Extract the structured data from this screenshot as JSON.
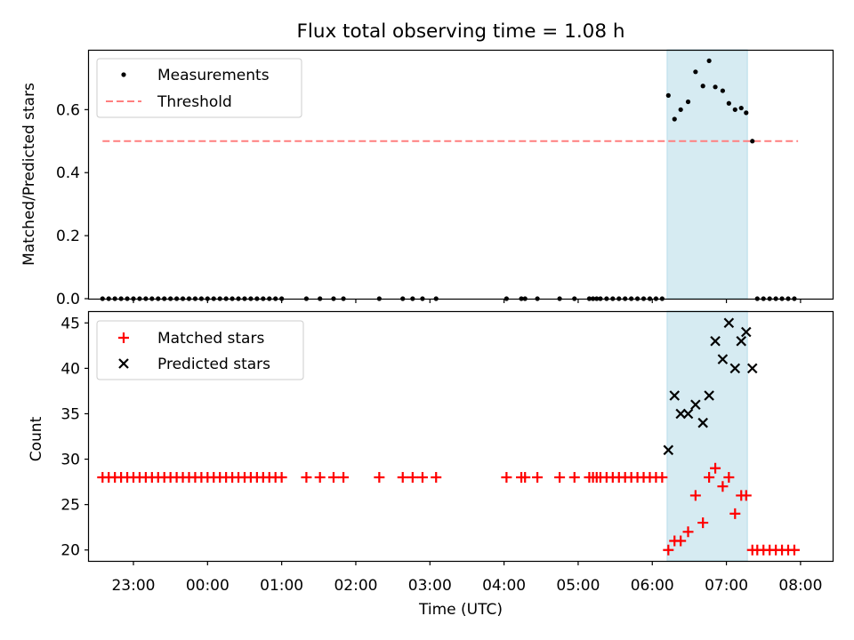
{
  "figure": {
    "title": "Flux total observing time = 1.08 h",
    "xlabel": "Time (UTC)",
    "xtick_labels": [
      "23:00",
      "00:00",
      "01:00",
      "02:00",
      "03:00",
      "04:00",
      "05:00",
      "06:00",
      "07:00",
      "08:00"
    ]
  },
  "chart_data": [
    {
      "type": "scatter",
      "ylabel": "Matched/Predicted stars",
      "xlim": [
        "22:24",
        "08:26"
      ],
      "ylim": [
        0,
        0.79
      ],
      "yticks": [
        0.0,
        0.2,
        0.4,
        0.6
      ],
      "ytick_labels": [
        "0.0",
        "0.2",
        "0.4",
        "0.6"
      ],
      "highlight_span": [
        "06:12",
        "07:17"
      ],
      "legend": {
        "placement": "upper left",
        "entries": [
          "Measurements",
          "Threshold"
        ]
      },
      "colors": {
        "measurements": "#000000",
        "threshold": "#ff7f7f",
        "span": "#add8e6"
      },
      "threshold": {
        "name": "Threshold",
        "x": [
          "22:35",
          "07:58"
        ],
        "y": 0.5
      },
      "series": [
        {
          "name": "Measurements",
          "points": [
            [
              "22:35",
              0
            ],
            [
              "22:40",
              0
            ],
            [
              "22:45",
              0
            ],
            [
              "22:50",
              0
            ],
            [
              "22:55",
              0
            ],
            [
              "23:00",
              0
            ],
            [
              "23:05",
              0
            ],
            [
              "23:10",
              0
            ],
            [
              "23:15",
              0
            ],
            [
              "23:20",
              0
            ],
            [
              "23:25",
              0
            ],
            [
              "23:30",
              0
            ],
            [
              "23:35",
              0
            ],
            [
              "23:40",
              0
            ],
            [
              "23:45",
              0
            ],
            [
              "23:50",
              0
            ],
            [
              "23:55",
              0
            ],
            [
              "00:00",
              0
            ],
            [
              "00:05",
              0
            ],
            [
              "00:10",
              0
            ],
            [
              "00:15",
              0
            ],
            [
              "00:20",
              0
            ],
            [
              "00:25",
              0
            ],
            [
              "00:30",
              0
            ],
            [
              "00:35",
              0
            ],
            [
              "00:40",
              0
            ],
            [
              "00:45",
              0
            ],
            [
              "00:50",
              0
            ],
            [
              "00:55",
              0
            ],
            [
              "01:00",
              0
            ],
            [
              "01:20",
              0
            ],
            [
              "01:31",
              0
            ],
            [
              "01:42",
              0
            ],
            [
              "01:50",
              0
            ],
            [
              "02:19",
              0
            ],
            [
              "02:38",
              0
            ],
            [
              "02:46",
              0
            ],
            [
              "02:54",
              0
            ],
            [
              "03:05",
              0
            ],
            [
              "04:02",
              0
            ],
            [
              "04:14",
              0
            ],
            [
              "04:17",
              0
            ],
            [
              "04:27",
              0
            ],
            [
              "04:45",
              0
            ],
            [
              "04:57",
              0
            ],
            [
              "05:09",
              0
            ],
            [
              "05:12",
              0
            ],
            [
              "05:15",
              0
            ],
            [
              "05:18",
              0
            ],
            [
              "05:23",
              0
            ],
            [
              "05:28",
              0
            ],
            [
              "05:33",
              0
            ],
            [
              "05:38",
              0
            ],
            [
              "05:43",
              0
            ],
            [
              "05:48",
              0
            ],
            [
              "05:53",
              0
            ],
            [
              "05:58",
              0
            ],
            [
              "06:03",
              0
            ],
            [
              "06:08",
              0
            ],
            [
              "06:13",
              0.645
            ],
            [
              "06:18",
              0.57
            ],
            [
              "06:23",
              0.6
            ],
            [
              "06:29",
              0.625
            ],
            [
              "06:35",
              0.72
            ],
            [
              "06:41",
              0.675
            ],
            [
              "06:46",
              0.755
            ],
            [
              "06:51",
              0.672
            ],
            [
              "06:57",
              0.66
            ],
            [
              "07:02",
              0.62
            ],
            [
              "07:07",
              0.6
            ],
            [
              "07:12",
              0.605
            ],
            [
              "07:16",
              0.59
            ],
            [
              "07:21",
              0.5
            ],
            [
              "07:25",
              0
            ],
            [
              "07:30",
              0
            ],
            [
              "07:35",
              0
            ],
            [
              "07:40",
              0
            ],
            [
              "07:45",
              0
            ],
            [
              "07:50",
              0
            ],
            [
              "07:55",
              0
            ]
          ]
        }
      ]
    },
    {
      "type": "scatter",
      "ylabel": "Count",
      "xlim": [
        "22:24",
        "08:26"
      ],
      "ylim": [
        18.8,
        46.3
      ],
      "yticks": [
        20,
        25,
        30,
        35,
        40,
        45
      ],
      "ytick_labels": [
        "20",
        "25",
        "30",
        "35",
        "40",
        "45"
      ],
      "highlight_span": [
        "06:12",
        "07:17"
      ],
      "legend": {
        "placement": "upper left",
        "entries": [
          "Matched stars",
          "Predicted stars"
        ]
      },
      "colors": {
        "matched": "#ff0000",
        "predicted": "#000000",
        "span": "#add8e6"
      },
      "series": [
        {
          "name": "Matched stars",
          "points": [
            [
              "22:35",
              28
            ],
            [
              "22:40",
              28
            ],
            [
              "22:45",
              28
            ],
            [
              "22:50",
              28
            ],
            [
              "22:55",
              28
            ],
            [
              "23:00",
              28
            ],
            [
              "23:05",
              28
            ],
            [
              "23:10",
              28
            ],
            [
              "23:15",
              28
            ],
            [
              "23:20",
              28
            ],
            [
              "23:25",
              28
            ],
            [
              "23:30",
              28
            ],
            [
              "23:35",
              28
            ],
            [
              "23:40",
              28
            ],
            [
              "23:45",
              28
            ],
            [
              "23:50",
              28
            ],
            [
              "23:55",
              28
            ],
            [
              "00:00",
              28
            ],
            [
              "00:05",
              28
            ],
            [
              "00:10",
              28
            ],
            [
              "00:15",
              28
            ],
            [
              "00:20",
              28
            ],
            [
              "00:25",
              28
            ],
            [
              "00:30",
              28
            ],
            [
              "00:35",
              28
            ],
            [
              "00:40",
              28
            ],
            [
              "00:45",
              28
            ],
            [
              "00:50",
              28
            ],
            [
              "00:55",
              28
            ],
            [
              "01:00",
              28
            ],
            [
              "01:20",
              28
            ],
            [
              "01:31",
              28
            ],
            [
              "01:42",
              28
            ],
            [
              "01:50",
              28
            ],
            [
              "02:19",
              28
            ],
            [
              "02:38",
              28
            ],
            [
              "02:46",
              28
            ],
            [
              "02:54",
              28
            ],
            [
              "03:05",
              28
            ],
            [
              "04:02",
              28
            ],
            [
              "04:14",
              28
            ],
            [
              "04:17",
              28
            ],
            [
              "04:27",
              28
            ],
            [
              "04:45",
              28
            ],
            [
              "04:57",
              28
            ],
            [
              "05:09",
              28
            ],
            [
              "05:12",
              28
            ],
            [
              "05:15",
              28
            ],
            [
              "05:18",
              28
            ],
            [
              "05:23",
              28
            ],
            [
              "05:28",
              28
            ],
            [
              "05:33",
              28
            ],
            [
              "05:38",
              28
            ],
            [
              "05:43",
              28
            ],
            [
              "05:48",
              28
            ],
            [
              "05:53",
              28
            ],
            [
              "05:58",
              28
            ],
            [
              "06:03",
              28
            ],
            [
              "06:08",
              28
            ],
            [
              "06:13",
              20
            ],
            [
              "06:18",
              21
            ],
            [
              "06:23",
              21
            ],
            [
              "06:29",
              22
            ],
            [
              "06:35",
              26
            ],
            [
              "06:41",
              23
            ],
            [
              "06:46",
              28
            ],
            [
              "06:51",
              29
            ],
            [
              "06:57",
              27
            ],
            [
              "07:02",
              28
            ],
            [
              "07:07",
              24
            ],
            [
              "07:12",
              26
            ],
            [
              "07:16",
              26
            ],
            [
              "07:21",
              20
            ],
            [
              "07:25",
              20
            ],
            [
              "07:30",
              20
            ],
            [
              "07:35",
              20
            ],
            [
              "07:40",
              20
            ],
            [
              "07:45",
              20
            ],
            [
              "07:50",
              20
            ],
            [
              "07:55",
              20
            ]
          ]
        },
        {
          "name": "Predicted stars",
          "points": [
            [
              "06:13",
              31
            ],
            [
              "06:18",
              37
            ],
            [
              "06:23",
              35
            ],
            [
              "06:29",
              35
            ],
            [
              "06:35",
              36
            ],
            [
              "06:41",
              34
            ],
            [
              "06:46",
              37
            ],
            [
              "06:51",
              43
            ],
            [
              "06:57",
              41
            ],
            [
              "07:02",
              45
            ],
            [
              "07:07",
              40
            ],
            [
              "07:12",
              43
            ],
            [
              "07:16",
              44
            ],
            [
              "07:21",
              40
            ]
          ]
        }
      ]
    }
  ]
}
